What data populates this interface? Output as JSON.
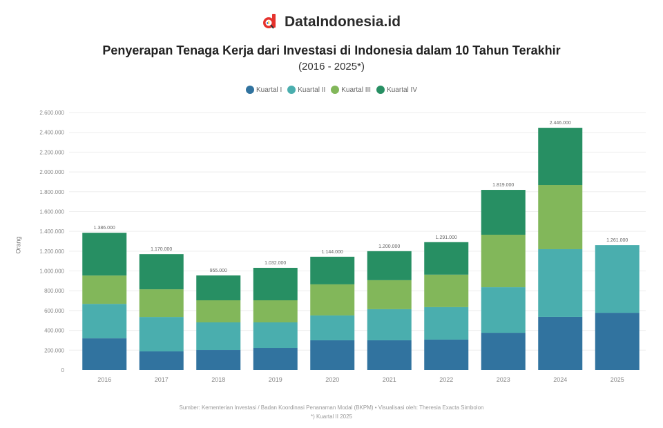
{
  "brand": {
    "name": "DataIndonesia.id",
    "logo_color": "#e5322d"
  },
  "header": {
    "title": "Penyerapan Tenaga Kerja dari Investasi di Indonesia dalam 10 Tahun Terakhir",
    "subtitle": "(2016 - 2025*)"
  },
  "footer": {
    "source": "Sumber: Kementerian Investasi / Badan Koordinasi Penanaman Modal (BKPM) • Visualisasi oleh: Theresia Exacta Simbolon",
    "note": "*) Kuartal II 2025"
  },
  "chart_data": {
    "type": "bar",
    "stacked": true,
    "title": "Penyerapan Tenaga Kerja dari Investasi di Indonesia dalam 10 Tahun Terakhir",
    "subtitle": "(2016 - 2025*)",
    "xlabel": "",
    "ylabel": "Orang",
    "ylim": [
      0,
      2600000
    ],
    "yticks": [
      0,
      200000,
      400000,
      600000,
      800000,
      1000000,
      1200000,
      1400000,
      1600000,
      1800000,
      2000000,
      2200000,
      2400000,
      2600000
    ],
    "ytick_labels": [
      "0",
      "200.000",
      "400.000",
      "600.000",
      "800.000",
      "1.000.000",
      "1.200.000",
      "1.400.000",
      "1.600.000",
      "1.800.000",
      "2.000.000",
      "2.200.000",
      "2.400.000",
      "2.600.000"
    ],
    "grid": true,
    "legend_position": "top",
    "categories": [
      "2016",
      "2017",
      "2018",
      "2019",
      "2020",
      "2021",
      "2022",
      "2023",
      "2024",
      "2025"
    ],
    "series": [
      {
        "name": "Kuartal I",
        "color": "#31739f",
        "values": [
          320000,
          188000,
          202000,
          223000,
          300000,
          300000,
          307000,
          376000,
          537000,
          578000
        ]
      },
      {
        "name": "Kuartal II",
        "color": "#4aaeae",
        "values": [
          348000,
          348000,
          279000,
          258000,
          251000,
          314000,
          328000,
          460000,
          683000,
          683000
        ]
      },
      {
        "name": "Kuartal III",
        "color": "#82b75a",
        "values": [
          286000,
          279000,
          223000,
          223000,
          314000,
          293000,
          328000,
          530000,
          648000,
          null
        ]
      },
      {
        "name": "Kuartal IV",
        "color": "#278f63",
        "values": [
          432000,
          355000,
          251000,
          328000,
          279000,
          293000,
          328000,
          453000,
          578000,
          null
        ]
      }
    ],
    "totals": [
      1386000,
      1170000,
      955000,
      1032000,
      1144000,
      1200000,
      1291000,
      1819000,
      2446000,
      1261000
    ],
    "total_labels": [
      "1.386.000",
      "1.170.000",
      "955.000",
      "1.032.000",
      "1.144.000",
      "1.200.000",
      "1.291.000",
      "1.819.000",
      "2.446.000",
      "1.261.000"
    ]
  }
}
